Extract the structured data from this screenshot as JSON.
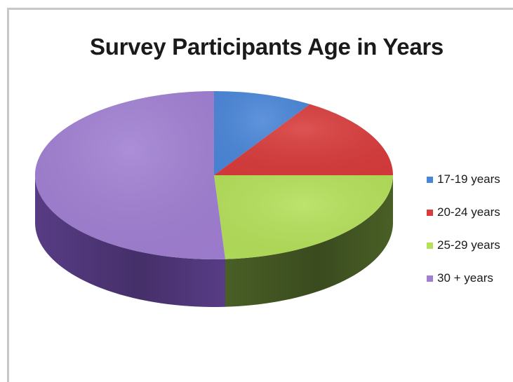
{
  "chart_data": {
    "type": "pie",
    "title": "Survey Participants Age in Years",
    "three_d": true,
    "categories": [
      "17-19 years",
      "20-24 years",
      "25-29 years",
      "30 + years"
    ],
    "values": [
      9,
      16,
      24,
      51
    ],
    "unit": "percent",
    "colors": [
      "#4a86d8",
      "#d83b3b",
      "#b4e05a",
      "#a07fd2"
    ],
    "side_colors": [
      "#2c5694",
      "#8c2222",
      "#4d6428",
      "#5c3f8c"
    ],
    "legend": {
      "position": "right",
      "entries": [
        "17-19 years",
        "20-24 years",
        "25-29 years",
        "30 + years"
      ]
    }
  }
}
